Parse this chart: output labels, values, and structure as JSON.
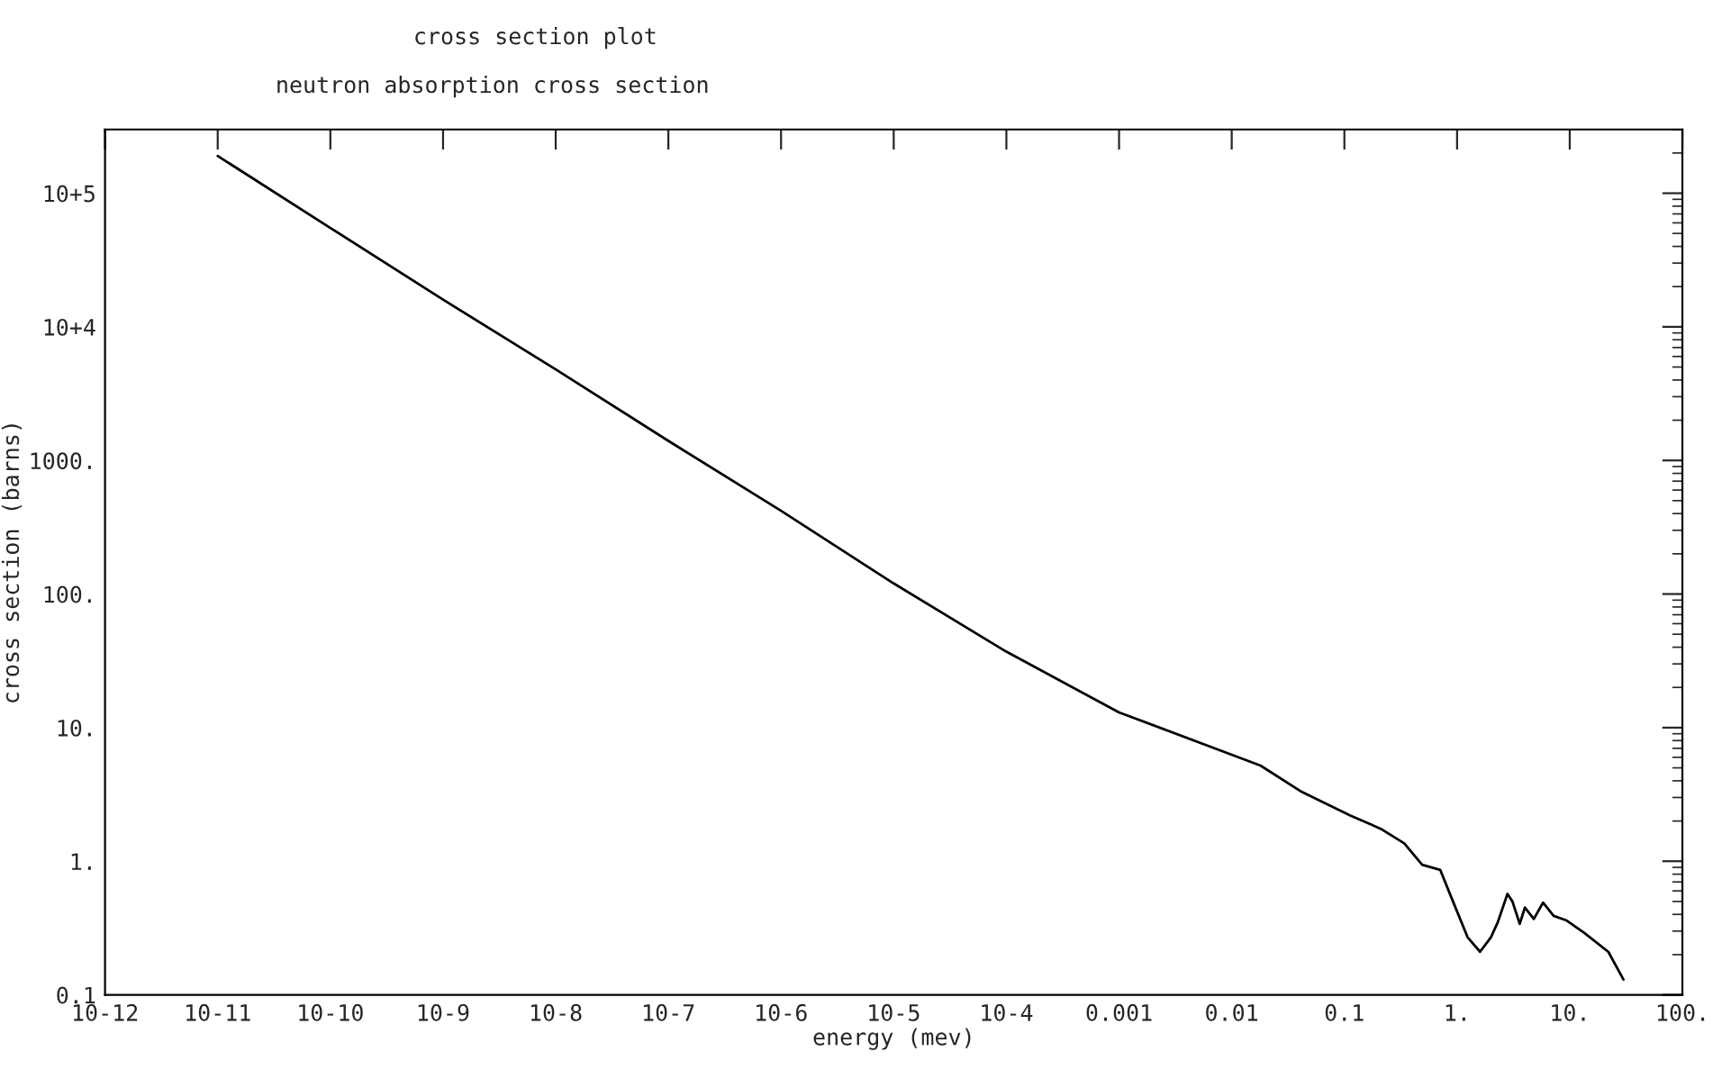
{
  "chart_data": {
    "type": "line",
    "title": "cross section plot",
    "subtitle": "neutron absorption cross section",
    "xlabel": "energy (mev)",
    "ylabel": "cross section (barns)",
    "log": "xy",
    "grid": false,
    "legend": false,
    "line_style": "solid",
    "marker": "none",
    "xlim": [
      1e-12,
      100
    ],
    "ylim": [
      0.1,
      300000
    ],
    "xticks": [
      {
        "value": 1e-12,
        "label": "10-12"
      },
      {
        "value": 1e-11,
        "label": "10-11"
      },
      {
        "value": 1e-10,
        "label": "10-10"
      },
      {
        "value": 1e-09,
        "label": "10-9"
      },
      {
        "value": 1e-08,
        "label": "10-8"
      },
      {
        "value": 1e-07,
        "label": "10-7"
      },
      {
        "value": 1e-06,
        "label": "10-6"
      },
      {
        "value": 1e-05,
        "label": "10-5"
      },
      {
        "value": 0.0001,
        "label": "10-4"
      },
      {
        "value": 0.001,
        "label": "0.001"
      },
      {
        "value": 0.01,
        "label": "0.01"
      },
      {
        "value": 0.1,
        "label": "0.1"
      },
      {
        "value": 1,
        "label": "1."
      },
      {
        "value": 10,
        "label": "10."
      },
      {
        "value": 100,
        "label": "100."
      }
    ],
    "yticks": [
      {
        "value": 0.1,
        "label": "0.1"
      },
      {
        "value": 1,
        "label": "1."
      },
      {
        "value": 10,
        "label": "10."
      },
      {
        "value": 100,
        "label": "100."
      },
      {
        "value": 1000,
        "label": "1000."
      },
      {
        "value": 10000,
        "label": "10+4"
      },
      {
        "value": 100000,
        "label": "10+5"
      }
    ],
    "series": [
      {
        "color": "#000000",
        "x": [
          1e-11,
          1e-10,
          1e-09,
          1e-08,
          1e-07,
          1e-06,
          1e-05,
          0.0001,
          0.001,
          0.018,
          0.042,
          0.113,
          0.21,
          0.34,
          0.49,
          0.71,
          0.92,
          1.24,
          1.6,
          2.0,
          2.3,
          2.8,
          3.1,
          3.6,
          4.0,
          4.8,
          5.8,
          7.2,
          9.4,
          13.5,
          22,
          30
        ],
        "values": [
          190000,
          55000,
          16000,
          4800,
          1400,
          420,
          120,
          37,
          13,
          5.2,
          3.3,
          2.2,
          1.75,
          1.36,
          0.94,
          0.86,
          0.5,
          0.27,
          0.21,
          0.27,
          0.35,
          0.57,
          0.5,
          0.34,
          0.45,
          0.37,
          0.49,
          0.39,
          0.36,
          0.29,
          0.21,
          0.13
        ]
      }
    ]
  }
}
